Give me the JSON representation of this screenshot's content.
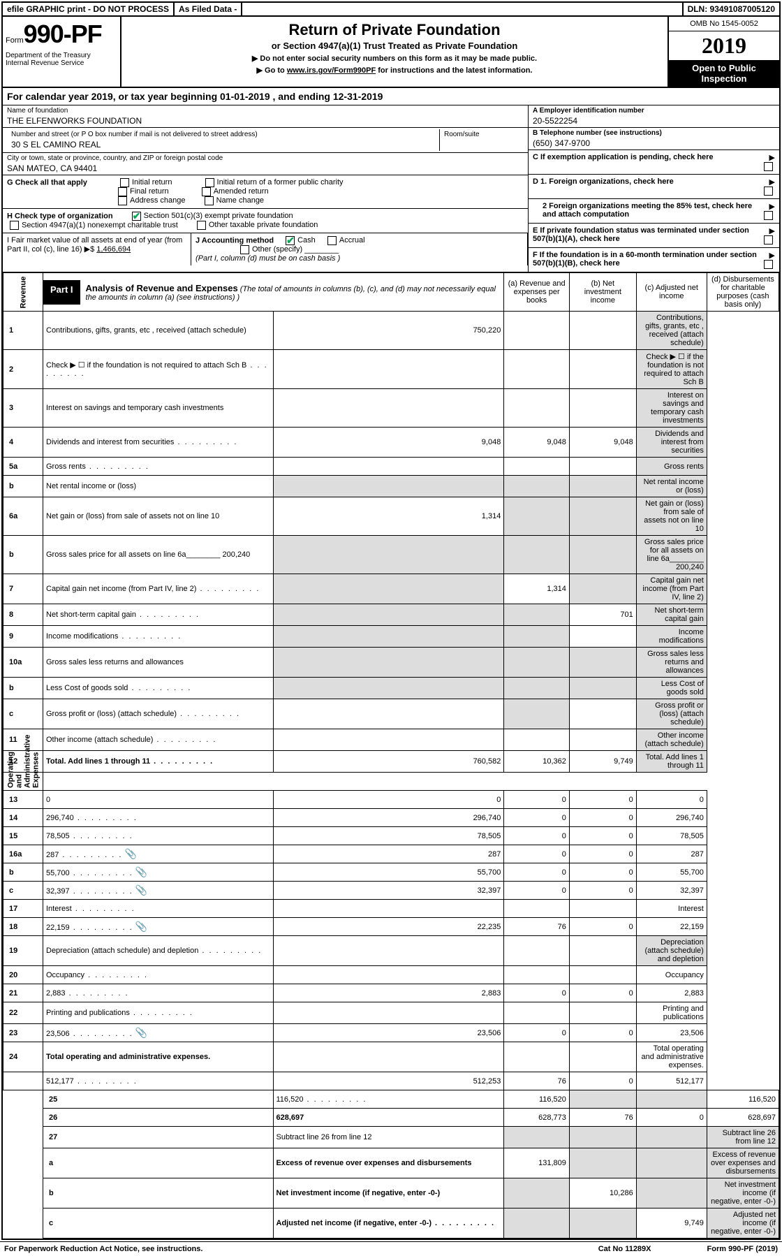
{
  "topbar": {
    "efile": "efile GRAPHIC print - DO NOT PROCESS",
    "asfiled": "As Filed Data -",
    "dln": "DLN: 93491087005120"
  },
  "header": {
    "form_prefix": "Form",
    "form_number": "990-PF",
    "dept": "Department of the Treasury\nInternal Revenue Service",
    "title": "Return of Private Foundation",
    "subtitle": "or Section 4947(a)(1) Trust Treated as Private Foundation",
    "note1": "▶ Do not enter social security numbers on this form as it may be made public.",
    "note2": "▶ Go to www.irs.gov/Form990PF for instructions and the latest information.",
    "omb": "OMB No 1545-0052",
    "year": "2019",
    "inspection": "Open to Public Inspection"
  },
  "cal": {
    "text": "For calendar year 2019, or tax year beginning 01-01-2019               , and ending 12-31-2019"
  },
  "entity": {
    "name_lbl": "Name of foundation",
    "name": "THE ELFENWORKS FOUNDATION",
    "addr_lbl": "Number and street (or P O  box number if mail is not delivered to street address)",
    "addr": "30 S EL CAMINO REAL",
    "room_lbl": "Room/suite",
    "city_lbl": "City or town, state or province, country, and ZIP or foreign postal code",
    "city": "SAN MATEO, CA  94401",
    "ein_lbl": "A Employer identification number",
    "ein": "20-5522254",
    "tel_lbl": "B Telephone number (see instructions)",
    "tel": "(650) 347-9700",
    "c_lbl": "C If exemption application is pending, check here"
  },
  "g": {
    "label": "G Check all that apply",
    "opts": [
      "Initial return",
      "Initial return of a former public charity",
      "Final return",
      "Amended return",
      "Address change",
      "Name change"
    ]
  },
  "h": {
    "label": "H Check type of organization",
    "opt1": "Section 501(c)(3) exempt private foundation",
    "opt2": "Section 4947(a)(1) nonexempt charitable trust",
    "opt3": "Other taxable private foundation"
  },
  "i": {
    "label": "I Fair market value of all assets at end of year (from Part II, col  (c), line 16) ▶$",
    "value": "1,466,694"
  },
  "j": {
    "label": "J Accounting method",
    "cash": "Cash",
    "accrual": "Accrual",
    "other": "Other (specify)",
    "note": "(Part I, column (d) must be on cash basis )"
  },
  "right_de": {
    "d1": "D 1. Foreign organizations, check here",
    "d2": "2  Foreign organizations meeting the 85% test, check here and attach computation",
    "e": "E  If private foundation status was terminated under section 507(b)(1)(A), check here",
    "f": "F  If the foundation is in a 60-month termination under section 507(b)(1)(B), check here"
  },
  "part1": {
    "label": "Part I",
    "title": "Analysis of Revenue and Expenses",
    "note": "(The total of amounts in columns (b), (c), and (d) may not necessarily equal the amounts in column (a) (see instructions) )",
    "col_a": "(a)   Revenue and expenses per books",
    "col_b": "(b)  Net investment income",
    "col_c": "(c)  Adjusted net income",
    "col_d": "(d)  Disbursements for charitable purposes (cash basis only)"
  },
  "side_labels": {
    "revenue": "Revenue",
    "expenses": "Operating and Administrative Expenses"
  },
  "rows": [
    {
      "n": "1",
      "d": "Contributions, gifts, grants, etc , received (attach schedule)",
      "a": "750,220",
      "shade_d": true
    },
    {
      "n": "2",
      "d": "Check ▶ ☐ if the foundation is not required to attach Sch B",
      "dots": true,
      "shade_d": true
    },
    {
      "n": "3",
      "d": "Interest on savings and temporary cash investments",
      "shade_d": true
    },
    {
      "n": "4",
      "d": "Dividends and interest from securities",
      "dots": true,
      "a": "9,048",
      "b": "9,048",
      "c": "9,048",
      "shade_d": true
    },
    {
      "n": "5a",
      "d": "Gross rents",
      "dots": true,
      "shade_d": true
    },
    {
      "n": "b",
      "d": "Net rental income or (loss)",
      "shade_a": true,
      "shade_b": true,
      "shade_c": true,
      "shade_d": true
    },
    {
      "n": "6a",
      "d": "Net gain or (loss) from sale of assets not on line 10",
      "a": "1,314",
      "shade_b": true,
      "shade_c": true,
      "shade_d": true
    },
    {
      "n": "b",
      "d": "Gross sales price for all assets on line 6a________ 200,240",
      "shade_a": true,
      "shade_b": true,
      "shade_c": true,
      "shade_d": true
    },
    {
      "n": "7",
      "d": "Capital gain net income (from Part IV, line 2)",
      "dots": true,
      "shade_a": true,
      "b": "1,314",
      "shade_c": true,
      "shade_d": true
    },
    {
      "n": "8",
      "d": "Net short-term capital gain",
      "dots": true,
      "shade_a": true,
      "shade_b": true,
      "c": "701",
      "shade_d": true
    },
    {
      "n": "9",
      "d": "Income modifications",
      "dots": true,
      "shade_a": true,
      "shade_b": true,
      "shade_d": true
    },
    {
      "n": "10a",
      "d": "Gross sales less returns and allowances",
      "shade_a": true,
      "shade_b": true,
      "shade_c": true,
      "shade_d": true
    },
    {
      "n": "b",
      "d": "Less  Cost of goods sold",
      "dots": true,
      "shade_a": true,
      "shade_b": true,
      "shade_c": true,
      "shade_d": true
    },
    {
      "n": "c",
      "d": "Gross profit or (loss) (attach schedule)",
      "dots": true,
      "shade_b": true,
      "shade_d": true
    },
    {
      "n": "11",
      "d": "Other income (attach schedule)",
      "dots": true,
      "shade_d": true
    },
    {
      "n": "12",
      "d": "Total. Add lines 1 through 11",
      "dots": true,
      "bold": true,
      "a": "760,582",
      "b": "10,362",
      "c": "9,749",
      "shade_d": true
    },
    {
      "n": "13",
      "d": "0",
      "a": "0",
      "b": "0",
      "c": "0"
    },
    {
      "n": "14",
      "d": "296,740",
      "dots": true,
      "a": "296,740",
      "b": "0",
      "c": "0"
    },
    {
      "n": "15",
      "d": "78,505",
      "dots": true,
      "a": "78,505",
      "b": "0",
      "c": "0"
    },
    {
      "n": "16a",
      "d": "287",
      "dots": true,
      "icon": true,
      "a": "287",
      "b": "0",
      "c": "0"
    },
    {
      "n": "b",
      "d": "55,700",
      "dots": true,
      "icon": true,
      "a": "55,700",
      "b": "0",
      "c": "0"
    },
    {
      "n": "c",
      "d": "32,397",
      "dots": true,
      "icon": true,
      "a": "32,397",
      "b": "0",
      "c": "0"
    },
    {
      "n": "17",
      "d": "Interest",
      "dots": true
    },
    {
      "n": "18",
      "d": "22,159",
      "dots": true,
      "icon": true,
      "a": "22,235",
      "b": "76",
      "c": "0"
    },
    {
      "n": "19",
      "d": "Depreciation (attach schedule) and depletion",
      "dots": true,
      "shade_d": true
    },
    {
      "n": "20",
      "d": "Occupancy",
      "dots": true
    },
    {
      "n": "21",
      "d": "2,883",
      "dots": true,
      "a": "2,883",
      "b": "0",
      "c": "0"
    },
    {
      "n": "22",
      "d": "Printing and publications",
      "dots": true
    },
    {
      "n": "23",
      "d": "23,506",
      "dots": true,
      "icon": true,
      "a": "23,506",
      "b": "0",
      "c": "0"
    },
    {
      "n": "24",
      "d": "Total operating and administrative expenses.",
      "bold": true,
      "noborder": true
    },
    {
      "n": "",
      "d": "512,177",
      "dots": true,
      "a": "512,253",
      "b": "76",
      "c": "0"
    },
    {
      "n": "25",
      "d": "116,520",
      "dots": true,
      "a": "116,520",
      "shade_b": true,
      "shade_c": true
    },
    {
      "n": "26",
      "d": "628,697",
      "bold": true,
      "a": "628,773",
      "b": "76",
      "c": "0"
    },
    {
      "n": "27",
      "d": "Subtract line 26 from line 12",
      "shade_a": true,
      "shade_b": true,
      "shade_c": true,
      "shade_d": true
    },
    {
      "n": "a",
      "d": "Excess of revenue over expenses and disbursements",
      "bold": true,
      "a": "131,809",
      "shade_b": true,
      "shade_c": true,
      "shade_d": true
    },
    {
      "n": "b",
      "d": "Net investment income (if negative, enter -0-)",
      "bold": true,
      "shade_a": true,
      "b": "10,286",
      "shade_c": true,
      "shade_d": true
    },
    {
      "n": "c",
      "d": "Adjusted net income (if negative, enter -0-)",
      "bold": true,
      "dots": true,
      "shade_a": true,
      "shade_b": true,
      "c": "9,749",
      "shade_d": true
    }
  ],
  "footer": {
    "left": "For Paperwork Reduction Act Notice, see instructions.",
    "mid": "Cat  No  11289X",
    "right": "Form 990-PF (2019)"
  }
}
